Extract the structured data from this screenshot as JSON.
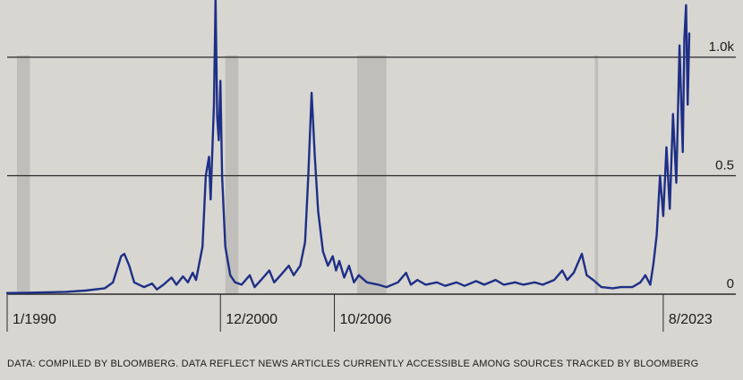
{
  "chart_data": {
    "type": "line",
    "title": "",
    "xlabel": "",
    "ylabel": "",
    "x_range": [
      "1990-01",
      "2024-12"
    ],
    "ylim": [
      0,
      1.1
    ],
    "y_ticks": [
      {
        "value": 0,
        "label": "0"
      },
      {
        "value": 0.5,
        "label": "0.5"
      },
      {
        "value": 1.0,
        "label": "1.0k"
      }
    ],
    "x_ticks": [
      {
        "date": "1990-01",
        "label": "1/1990"
      },
      {
        "date": "2000-12",
        "label": "12/2000"
      },
      {
        "date": "2006-10",
        "label": "10/2006"
      },
      {
        "date": "2023-08",
        "label": "8/2023"
      }
    ],
    "recessions": [
      {
        "start": "1990-07",
        "end": "1991-03"
      },
      {
        "start": "2001-03",
        "end": "2001-11"
      },
      {
        "start": "2007-12",
        "end": "2009-06"
      },
      {
        "start": "2020-02",
        "end": "2020-04"
      }
    ],
    "series": [
      {
        "color": "#1e2f86",
        "points": [
          [
            "1990-01",
            0.005
          ],
          [
            "1991-01",
            0.006
          ],
          [
            "1992-01",
            0.008
          ],
          [
            "1993-01",
            0.01
          ],
          [
            "1994-01",
            0.015
          ],
          [
            "1995-01",
            0.025
          ],
          [
            "1995-06",
            0.05
          ],
          [
            "1995-11",
            0.16
          ],
          [
            "1996-01",
            0.17
          ],
          [
            "1996-04",
            0.12
          ],
          [
            "1996-07",
            0.05
          ],
          [
            "1997-01",
            0.03
          ],
          [
            "1997-06",
            0.045
          ],
          [
            "1997-09",
            0.02
          ],
          [
            "1998-01",
            0.04
          ],
          [
            "1998-06",
            0.07
          ],
          [
            "1998-09",
            0.04
          ],
          [
            "1999-01",
            0.075
          ],
          [
            "1999-04",
            0.05
          ],
          [
            "1999-07",
            0.09
          ],
          [
            "1999-09",
            0.06
          ],
          [
            "1999-11",
            0.13
          ],
          [
            "2000-01",
            0.2
          ],
          [
            "2000-03",
            0.5
          ],
          [
            "2000-05",
            0.58
          ],
          [
            "2000-06",
            0.4
          ],
          [
            "2000-08",
            0.8
          ],
          [
            "2000-09",
            1.25
          ],
          [
            "2000-10",
            0.75
          ],
          [
            "2000-11",
            0.65
          ],
          [
            "2000-12",
            0.9
          ],
          [
            "2001-01",
            0.5
          ],
          [
            "2001-03",
            0.2
          ],
          [
            "2001-06",
            0.08
          ],
          [
            "2001-09",
            0.05
          ],
          [
            "2002-01",
            0.04
          ],
          [
            "2002-06",
            0.08
          ],
          [
            "2002-09",
            0.03
          ],
          [
            "2003-01",
            0.06
          ],
          [
            "2003-06",
            0.1
          ],
          [
            "2003-09",
            0.05
          ],
          [
            "2004-01",
            0.08
          ],
          [
            "2004-06",
            0.12
          ],
          [
            "2004-09",
            0.08
          ],
          [
            "2005-01",
            0.12
          ],
          [
            "2005-04",
            0.22
          ],
          [
            "2005-06",
            0.5
          ],
          [
            "2005-08",
            0.85
          ],
          [
            "2005-10",
            0.58
          ],
          [
            "2005-12",
            0.35
          ],
          [
            "2006-03",
            0.18
          ],
          [
            "2006-06",
            0.12
          ],
          [
            "2006-09",
            0.16
          ],
          [
            "2006-11",
            0.1
          ],
          [
            "2007-01",
            0.14
          ],
          [
            "2007-04",
            0.07
          ],
          [
            "2007-07",
            0.12
          ],
          [
            "2007-10",
            0.05
          ],
          [
            "2008-01",
            0.08
          ],
          [
            "2008-06",
            0.05
          ],
          [
            "2009-01",
            0.04
          ],
          [
            "2009-06",
            0.03
          ],
          [
            "2010-01",
            0.05
          ],
          [
            "2010-06",
            0.09
          ],
          [
            "2010-09",
            0.04
          ],
          [
            "2011-01",
            0.06
          ],
          [
            "2011-06",
            0.04
          ],
          [
            "2012-01",
            0.05
          ],
          [
            "2012-06",
            0.035
          ],
          [
            "2013-01",
            0.05
          ],
          [
            "2013-06",
            0.035
          ],
          [
            "2014-01",
            0.055
          ],
          [
            "2014-06",
            0.04
          ],
          [
            "2015-01",
            0.06
          ],
          [
            "2015-06",
            0.04
          ],
          [
            "2016-01",
            0.05
          ],
          [
            "2016-06",
            0.04
          ],
          [
            "2017-01",
            0.05
          ],
          [
            "2017-06",
            0.04
          ],
          [
            "2018-01",
            0.06
          ],
          [
            "2018-06",
            0.1
          ],
          [
            "2018-09",
            0.06
          ],
          [
            "2019-01",
            0.09
          ],
          [
            "2019-06",
            0.17
          ],
          [
            "2019-09",
            0.08
          ],
          [
            "2020-01",
            0.06
          ],
          [
            "2020-06",
            0.03
          ],
          [
            "2021-01",
            0.025
          ],
          [
            "2021-06",
            0.03
          ],
          [
            "2022-01",
            0.03
          ],
          [
            "2022-06",
            0.05
          ],
          [
            "2022-09",
            0.08
          ],
          [
            "2022-12",
            0.04
          ],
          [
            "2023-02",
            0.13
          ],
          [
            "2023-04",
            0.25
          ],
          [
            "2023-06",
            0.5
          ],
          [
            "2023-08",
            0.33
          ],
          [
            "2023-10",
            0.62
          ],
          [
            "2023-12",
            0.36
          ],
          [
            "2024-02",
            0.76
          ],
          [
            "2024-04",
            0.47
          ],
          [
            "2024-06",
            1.05
          ],
          [
            "2024-08",
            0.6
          ],
          [
            "2024-09",
            1.08
          ],
          [
            "2024-10",
            1.22
          ],
          [
            "2024-11",
            0.8
          ],
          [
            "2024-12",
            1.1
          ]
        ]
      }
    ]
  },
  "footer": {
    "source_note": "DATA: COMPILED BY BLOOMBERG. DATA REFLECT NEWS ARTICLES CURRENTLY ACCESSIBLE AMONG SOURCES TRACKED BY BLOOMBERG"
  },
  "colors": {
    "line": "#1e2f86",
    "gridline": "#2a2a2a",
    "recession_band": "#b8b6b1",
    "background": "#d8d6d1"
  }
}
